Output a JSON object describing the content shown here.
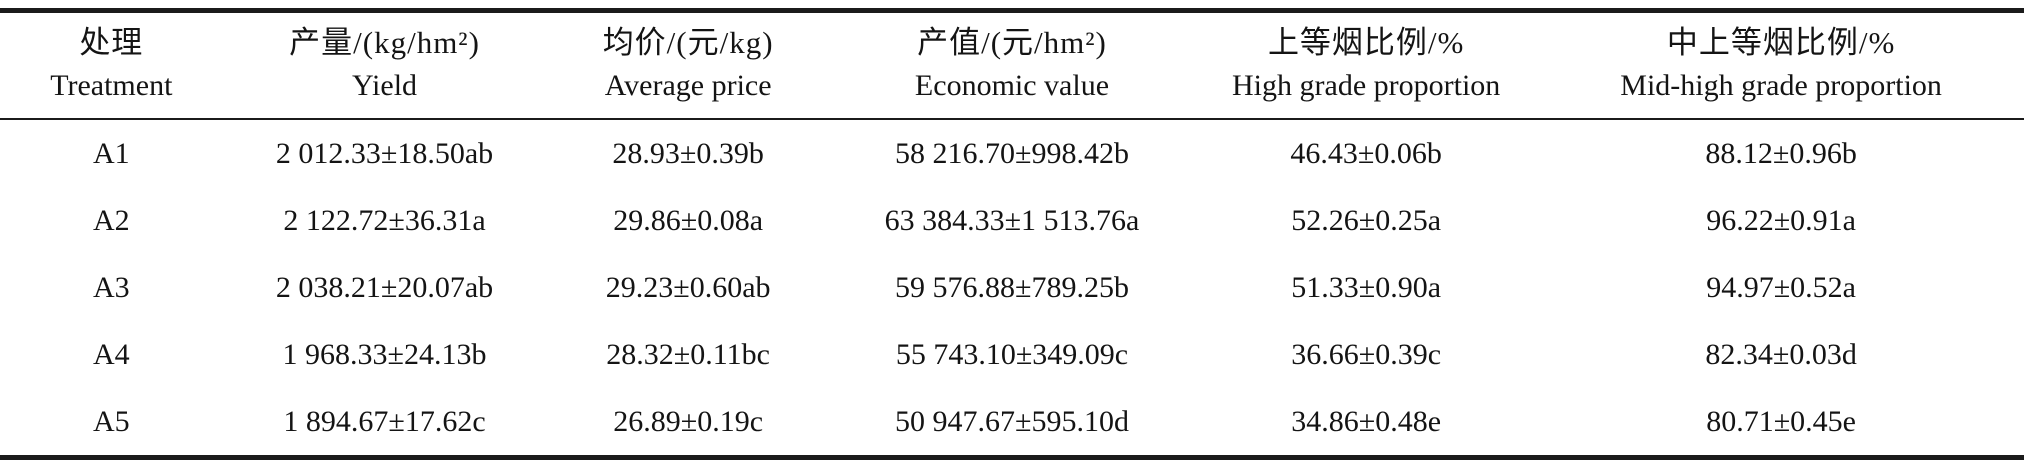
{
  "table": {
    "columns": [
      {
        "zh": "处理",
        "en": "Treatment"
      },
      {
        "zh": "产量/(kg/hm²)",
        "en": "Yield"
      },
      {
        "zh": "均价/(元/kg)",
        "en": "Average price"
      },
      {
        "zh": "产值/(元/hm²)",
        "en": "Economic value"
      },
      {
        "zh": "上等烟比例/%",
        "en": "High grade proportion"
      },
      {
        "zh": "中上等烟比例/%",
        "en": "Mid-high grade proportion"
      }
    ],
    "rows": [
      [
        "A1",
        "2 012.33±18.50ab",
        "28.93±0.39b",
        "58 216.70±998.42b",
        "46.43±0.06b",
        "88.12±0.96b"
      ],
      [
        "A2",
        "2 122.72±36.31a",
        "29.86±0.08a",
        "63 384.33±1 513.76a",
        "52.26±0.25a",
        "96.22±0.91a"
      ],
      [
        "A3",
        "2 038.21±20.07ab",
        "29.23±0.60ab",
        "59 576.88±789.25b",
        "51.33±0.90a",
        "94.97±0.52a"
      ],
      [
        "A4",
        "1 968.33±24.13b",
        "28.32±0.11bc",
        "55 743.10±349.09c",
        "36.66±0.39c",
        "82.34±0.03d"
      ],
      [
        "A5",
        "1 894.67±17.62c",
        "26.89±0.19c",
        "50 947.67±595.10d",
        "34.86±0.48e",
        "80.71±0.45e"
      ]
    ]
  }
}
